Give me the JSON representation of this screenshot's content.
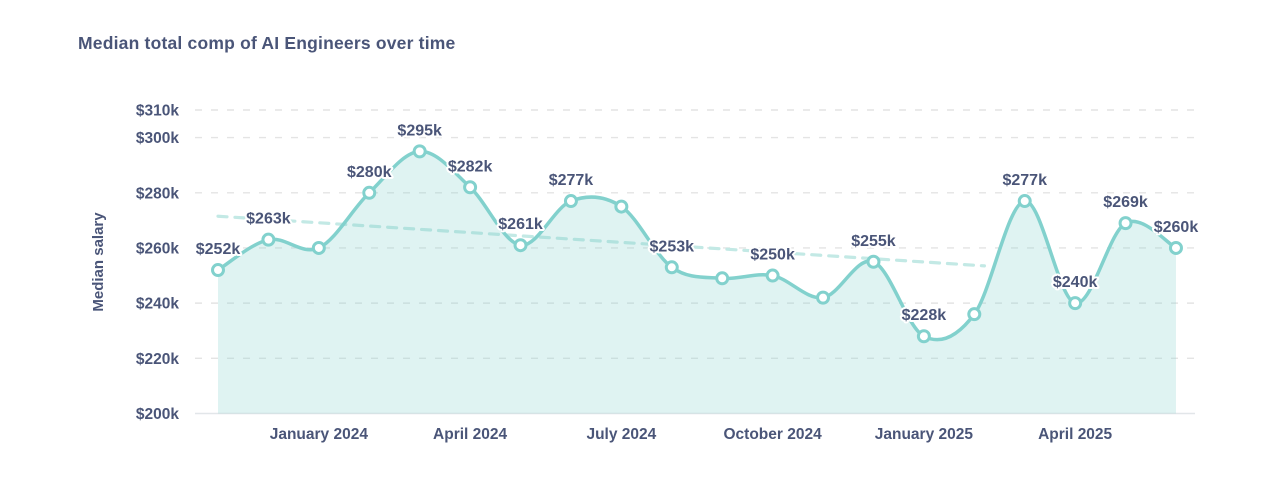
{
  "chart_data": {
    "type": "area",
    "title": "Median total comp of AI Engineers over time",
    "ylabel": "Median salary",
    "ylim": [
      200,
      310
    ],
    "grid": "dashed-horizontal",
    "unit": "$k",
    "points_are_monthly": true,
    "values": [
      252,
      263,
      260,
      280,
      295,
      282,
      261,
      277,
      275,
      253,
      249,
      250,
      242,
      255,
      228,
      236,
      277,
      240,
      269,
      260
    ],
    "point_labels": [
      "$252k",
      "$263k",
      null,
      "$280k",
      "$295k",
      "$282k",
      "$261k",
      "$277k",
      null,
      "$253k",
      null,
      "$250k",
      null,
      "$255k",
      "$228k",
      null,
      "$277k",
      "$240k",
      "$269k",
      "$260k"
    ],
    "x_ticks": [
      {
        "index": 2,
        "label": "January 2024"
      },
      {
        "index": 5,
        "label": "April 2024"
      },
      {
        "index": 8,
        "label": "July 2024"
      },
      {
        "index": 11,
        "label": "October 2024"
      },
      {
        "index": 14,
        "label": "January 2025"
      },
      {
        "index": 17,
        "label": "April 2025"
      }
    ],
    "y_ticks": [
      {
        "value": 310,
        "label": "$310k"
      },
      {
        "value": 300,
        "label": "$300k"
      },
      {
        "value": 280,
        "label": "$280k"
      },
      {
        "value": 260,
        "label": "$260k"
      },
      {
        "value": 240,
        "label": "$240k"
      },
      {
        "value": 220,
        "label": "$220k"
      },
      {
        "value": 200,
        "label": "$200k"
      }
    ],
    "trend_line": {
      "style": "dashed",
      "start_index": 0,
      "start_value": 271.5,
      "end_index": 15.2,
      "end_value": 253.5
    },
    "colors": {
      "line": "#82d1cd",
      "area_fill": "rgba(130,209,205,0.26)",
      "trend": "#c3e9e5",
      "grid": "#e4e4e4",
      "baseline": "#e2e6e9",
      "marker_fill": "#ffffff",
      "text": "#4a5578",
      "background": "#ffffff"
    }
  }
}
